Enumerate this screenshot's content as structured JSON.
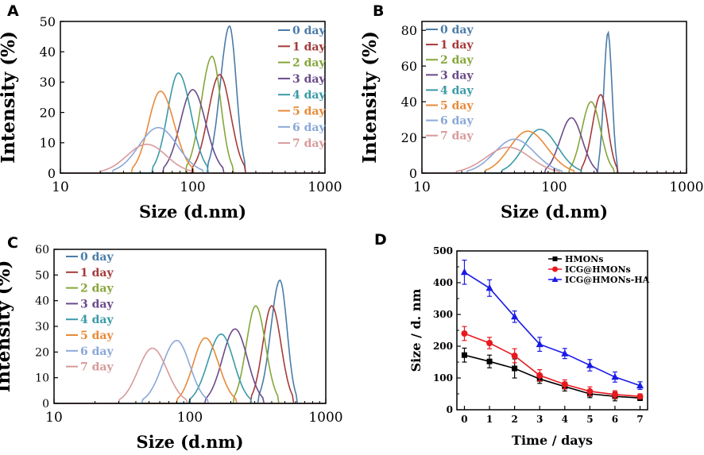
{
  "chart_data": [
    {
      "panel": "A",
      "type": "line",
      "xscale": "log",
      "xlabel": "Size (d.nm)",
      "ylabel": "Intensity (%)",
      "xlim": [
        10,
        1000
      ],
      "ylim": [
        0,
        50
      ],
      "xticks": [
        "10",
        "100",
        "1000"
      ],
      "yticks": [
        "0",
        "10",
        "20",
        "30",
        "40",
        "50"
      ],
      "legend_position": "top-right",
      "series": [
        {
          "name": "0 day",
          "color": "#4a7ca8",
          "peak_x": 190,
          "peak_y": 48.5,
          "x_min": 130,
          "x_max": 250
        },
        {
          "name": "1 day",
          "color": "#a63a3a",
          "peak_x": 160,
          "peak_y": 32.5,
          "x_min": 100,
          "x_max": 250
        },
        {
          "name": "2 day",
          "color": "#86a63a",
          "peak_x": 140,
          "peak_y": 38.5,
          "x_min": 90,
          "x_max": 200
        },
        {
          "name": "3 day",
          "color": "#6a4a8a",
          "peak_x": 100,
          "peak_y": 27.5,
          "x_min": 60,
          "x_max": 170
        },
        {
          "name": "4 day",
          "color": "#3a9aa8",
          "peak_x": 78,
          "peak_y": 33,
          "x_min": 50,
          "x_max": 130
        },
        {
          "name": "5 day",
          "color": "#e88a3a",
          "peak_x": 57,
          "peak_y": 27,
          "x_min": 35,
          "x_max": 100
        },
        {
          "name": "6 day",
          "color": "#8aa8d8",
          "peak_x": 55,
          "peak_y": 15,
          "x_min": 25,
          "x_max": 120
        },
        {
          "name": "7 day",
          "color": "#d89a9a",
          "peak_x": 45,
          "peak_y": 9.5,
          "x_min": 20,
          "x_max": 100
        }
      ]
    },
    {
      "panel": "B",
      "type": "line",
      "xscale": "log",
      "xlabel": "Size (d.nm)",
      "ylabel": "Intensity (%)",
      "xlim": [
        10,
        1000
      ],
      "ylim": [
        0,
        85
      ],
      "xticks": [
        "10",
        "100",
        "1000"
      ],
      "yticks": [
        "0",
        "20",
        "40",
        "60",
        "80"
      ],
      "legend_position": "top-left",
      "series": [
        {
          "name": "0 day",
          "color": "#4a7ca8",
          "peak_x": 255,
          "peak_y": 79,
          "x_min": 215,
          "x_max": 300
        },
        {
          "name": "1 day",
          "color": "#a63a3a",
          "peak_x": 225,
          "peak_y": 44,
          "x_min": 160,
          "x_max": 300
        },
        {
          "name": "2 day",
          "color": "#86a63a",
          "peak_x": 190,
          "peak_y": 40,
          "x_min": 130,
          "x_max": 280
        },
        {
          "name": "3 day",
          "color": "#6a4a8a",
          "peak_x": 135,
          "peak_y": 31,
          "x_min": 85,
          "x_max": 210
        },
        {
          "name": "4 day",
          "color": "#3a9aa8",
          "peak_x": 78,
          "peak_y": 24.5,
          "x_min": 40,
          "x_max": 160
        },
        {
          "name": "5 day",
          "color": "#e88a3a",
          "peak_x": 63,
          "peak_y": 23.5,
          "x_min": 30,
          "x_max": 140
        },
        {
          "name": "6 day",
          "color": "#8aa8d8",
          "peak_x": 50,
          "peak_y": 19,
          "x_min": 22,
          "x_max": 115
        },
        {
          "name": "7 day",
          "color": "#d89a9a",
          "peak_x": 45,
          "peak_y": 14.5,
          "x_min": 18,
          "x_max": 110
        }
      ]
    },
    {
      "panel": "C",
      "type": "line",
      "xscale": "log",
      "xlabel": "Size (d.nm)",
      "ylabel": "Intensity (%)",
      "xlim": [
        10,
        1000
      ],
      "ylim": [
        0,
        60
      ],
      "xticks": [
        "10",
        "100",
        "1000"
      ],
      "yticks": [
        "0",
        "10",
        "20",
        "30",
        "40",
        "50",
        "60"
      ],
      "legend_position": "top-left",
      "series": [
        {
          "name": "0 day",
          "color": "#4a7ca8",
          "peak_x": 460,
          "peak_y": 48,
          "x_min": 320,
          "x_max": 610
        },
        {
          "name": "1 day",
          "color": "#a63a3a",
          "peak_x": 400,
          "peak_y": 38,
          "x_min": 280,
          "x_max": 580
        },
        {
          "name": "2 day",
          "color": "#86a63a",
          "peak_x": 305,
          "peak_y": 38,
          "x_min": 210,
          "x_max": 450
        },
        {
          "name": "3 day",
          "color": "#6a4a8a",
          "peak_x": 215,
          "peak_y": 29,
          "x_min": 130,
          "x_max": 350
        },
        {
          "name": "4 day",
          "color": "#3a9aa8",
          "peak_x": 170,
          "peak_y": 27,
          "x_min": 100,
          "x_max": 280
        },
        {
          "name": "5 day",
          "color": "#e88a3a",
          "peak_x": 130,
          "peak_y": 25.5,
          "x_min": 80,
          "x_max": 220
        },
        {
          "name": "6 day",
          "color": "#8aa8d8",
          "peak_x": 80,
          "peak_y": 24.5,
          "x_min": 45,
          "x_max": 135
        },
        {
          "name": "7 day",
          "color": "#d89a9a",
          "peak_x": 53,
          "peak_y": 21.5,
          "x_min": 30,
          "x_max": 95
        }
      ]
    },
    {
      "panel": "D",
      "type": "line",
      "xscale": "linear",
      "xlabel": "Time / days",
      "ylabel": "Size / d. nm",
      "xlim": [
        -0.3,
        7.3
      ],
      "ylim": [
        0,
        500
      ],
      "xticks": [
        "0",
        "1",
        "2",
        "3",
        "4",
        "5",
        "6",
        "7"
      ],
      "yticks": [
        "0",
        "100",
        "200",
        "300",
        "400",
        "500"
      ],
      "legend_position": "top-right",
      "x": [
        0,
        1,
        2,
        3,
        4,
        5,
        6,
        7
      ],
      "series": [
        {
          "name": "HMONs",
          "color": "#000000",
          "marker": "square",
          "values": [
            172,
            152,
            130,
            97,
            73,
            50,
            42,
            37
          ],
          "errors": [
            22,
            20,
            30,
            14,
            14,
            12,
            14,
            8
          ]
        },
        {
          "name": "ICG@HMONs",
          "color": "#e8191e",
          "marker": "circle",
          "values": [
            240,
            210,
            170,
            108,
            80,
            58,
            48,
            42
          ],
          "errors": [
            22,
            18,
            22,
            18,
            14,
            14,
            12,
            8
          ]
        },
        {
          "name": "ICG@HMONs-HA",
          "color": "#1a1ae6",
          "marker": "triangle",
          "values": [
            433,
            383,
            293,
            206,
            177,
            140,
            103,
            76
          ],
          "errors": [
            38,
            26,
            18,
            22,
            16,
            18,
            16,
            12
          ]
        }
      ]
    }
  ]
}
